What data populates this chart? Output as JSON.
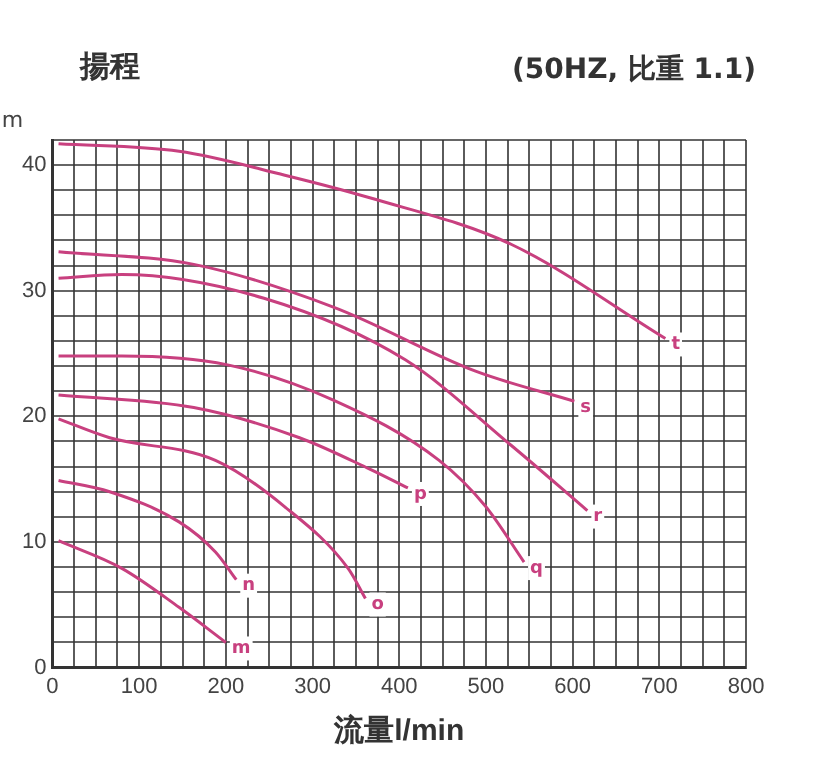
{
  "chart_data": {
    "type": "line",
    "title": "揚程",
    "subtitle": "(50HZ, 比重 1.1)",
    "xlabel": "流量l/min",
    "ylabel": "m",
    "series": [
      {
        "color": "#c8407f",
        "x": [
          7,
          146,
          268,
          366,
          529,
          707
        ],
        "values": [
          41.7,
          41.1,
          39.2,
          37.4,
          33.7,
          26.2
        ]
      },
      {
        "color": "#c8407f",
        "x": [
          7,
          163,
          324,
          488,
          602
        ],
        "values": [
          33.1,
          32.1,
          28.7,
          23.6,
          21.2
        ]
      },
      {
        "color": "#c8407f",
        "x": [
          7,
          80,
          244,
          407,
          529,
          617
        ],
        "values": [
          31,
          31.3,
          29.4,
          24.5,
          17.7,
          12.5
        ]
      },
      {
        "color": "#c8407f",
        "x": [
          7,
          80,
          202,
          324,
          446,
          500,
          544
        ],
        "values": [
          24.8,
          24.8,
          24.1,
          21.3,
          16.5,
          12.8,
          8.4
        ]
      },
      {
        "color": "#c8407f",
        "x": [
          7,
          163,
          285,
          366,
          410
        ],
        "values": [
          21.7,
          20.7,
          18.3,
          15.8,
          14.3
        ]
      },
      {
        "color": "#c8407f",
        "x": [
          7,
          66,
          188,
          268,
          341,
          361
        ],
        "values": [
          19.8,
          18.3,
          16.5,
          12.8,
          7.9,
          5.5
        ]
      },
      {
        "color": "#c8407f",
        "x": [
          7,
          66,
          146,
          188,
          212
        ],
        "values": [
          14.9,
          14,
          11.6,
          9.2,
          7
        ]
      },
      {
        "color": "#c8407f",
        "x": [
          7,
          80,
          146,
          200
        ],
        "values": [
          10.1,
          7.9,
          4.8,
          2
        ]
      }
    ],
    "annotations": [
      {
        "text": "t",
        "x": 707,
        "y": 26.2
      },
      {
        "text": "s",
        "x": 602,
        "y": 21.2
      },
      {
        "text": "r",
        "x": 617,
        "y": 12.5
      },
      {
        "text": "q",
        "x": 544,
        "y": 8.4
      },
      {
        "text": "p",
        "x": 410,
        "y": 14.3
      },
      {
        "text": "o",
        "x": 361,
        "y": 5.5
      },
      {
        "text": "n",
        "x": 212,
        "y": 7
      },
      {
        "text": "m",
        "x": 200,
        "y": 2
      }
    ],
    "xlim": [
      0,
      800
    ],
    "xticks": [
      0,
      {
        "value": 25,
        "label": null
      },
      {
        "value": 50,
        "label": null
      },
      {
        "value": 75,
        "label": null
      },
      100,
      {
        "value": 125,
        "label": null
      },
      {
        "value": 150,
        "label": null
      },
      {
        "value": 175,
        "label": null
      },
      200,
      {
        "value": 225,
        "label": null
      },
      {
        "value": 250,
        "label": null
      },
      {
        "value": 275,
        "label": null
      },
      300,
      {
        "value": 325,
        "label": null
      },
      {
        "value": 350,
        "label": null
      },
      {
        "value": 375,
        "label": null
      },
      400,
      {
        "value": 425,
        "label": null
      },
      {
        "value": 450,
        "label": null
      },
      {
        "value": 475,
        "label": null
      },
      500,
      {
        "value": 525,
        "label": null
      },
      {
        "value": 550,
        "label": null
      },
      {
        "value": 575,
        "label": null
      },
      600,
      {
        "value": 625,
        "label": null
      },
      {
        "value": 650,
        "label": null
      },
      {
        "value": 675,
        "label": null
      },
      700,
      {
        "value": 725,
        "label": null
      },
      {
        "value": 750,
        "label": null
      },
      {
        "value": 775,
        "label": null
      },
      800
    ],
    "ylim": [
      0,
      42
    ],
    "yticks": [
      0,
      {
        "value": 2,
        "label": null
      },
      {
        "value": 4,
        "label": null
      },
      {
        "value": 6,
        "label": null
      },
      {
        "value": 8,
        "label": null
      },
      10,
      {
        "value": 12,
        "label": null
      },
      {
        "value": 14,
        "label": null
      },
      {
        "value": 16,
        "label": null
      },
      {
        "value": 18,
        "label": null
      },
      20,
      {
        "value": 22,
        "label": null
      },
      {
        "value": 24,
        "label": null
      },
      {
        "value": 26,
        "label": null
      },
      {
        "value": 28,
        "label": null
      },
      30,
      {
        "value": 32,
        "label": null
      },
      {
        "value": 34,
        "label": null
      },
      {
        "value": 36,
        "label": null
      },
      {
        "value": 38,
        "label": null
      },
      40,
      {
        "value": 42,
        "label": null
      }
    ],
    "grid": true,
    "legend": false,
    "marker": "none",
    "line_style": "solid"
  }
}
